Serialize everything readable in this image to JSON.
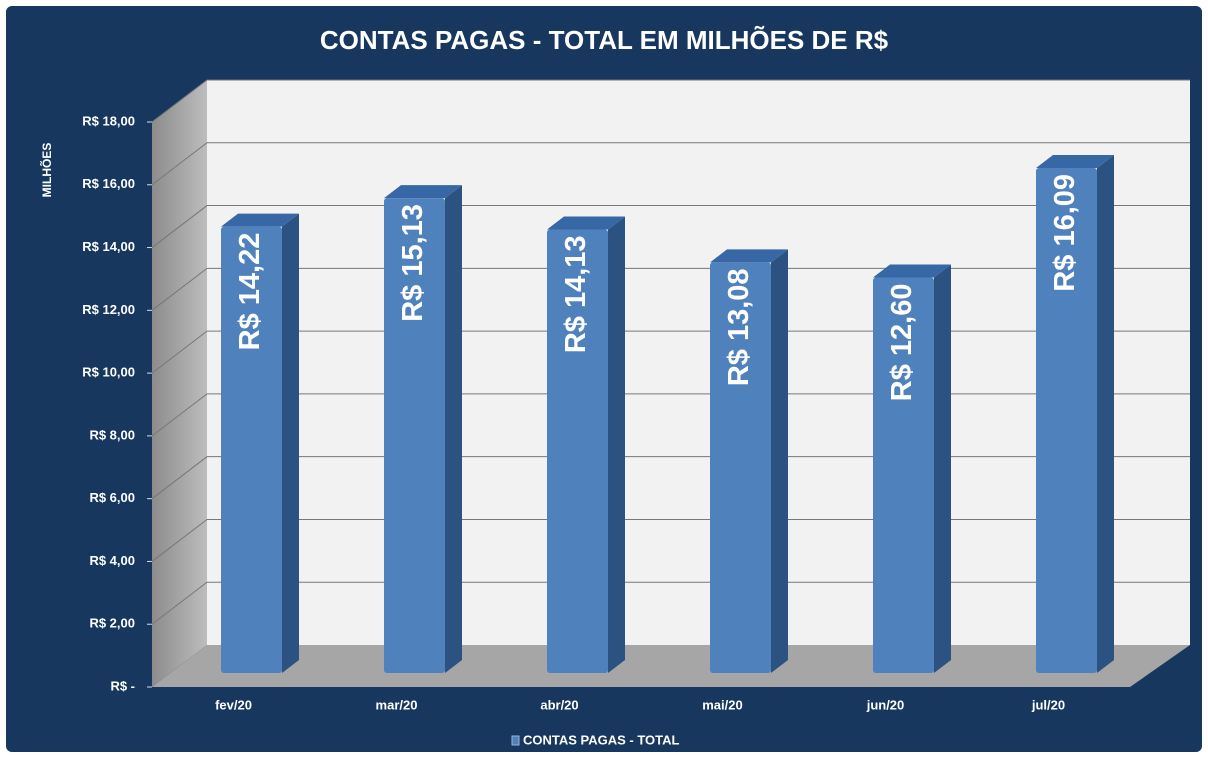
{
  "chart_data": {
    "type": "bar3d",
    "title": "CONTAS PAGAS - TOTAL EM MILHÕES DE R$",
    "y_label": "MILHÕES",
    "categories": [
      "fev/20",
      "mar/20",
      "abr/20",
      "mai/20",
      "jun/20",
      "jul/20"
    ],
    "series": [
      {
        "name": "CONTAS PAGAS - TOTAL",
        "color": "#4f81bd",
        "values": [
          14.22,
          15.13,
          14.13,
          13.08,
          12.6,
          16.09
        ],
        "value_labels": [
          "R$ 14,22",
          "R$ 15,13",
          "R$ 14,13",
          "R$ 13,08",
          "R$ 12,60",
          "R$ 16,09"
        ]
      }
    ],
    "ylim": [
      0,
      18
    ],
    "yticks": [
      {
        "value": 0,
        "label": "R$ -"
      },
      {
        "value": 2,
        "label": "R$ 2,00"
      },
      {
        "value": 4,
        "label": "R$ 4,00"
      },
      {
        "value": 6,
        "label": "R$ 6,00"
      },
      {
        "value": 8,
        "label": "R$ 8,00"
      },
      {
        "value": 10,
        "label": "R$ 10,00"
      },
      {
        "value": 12,
        "label": "R$ 12,00"
      },
      {
        "value": 14,
        "label": "R$ 14,00"
      },
      {
        "value": 16,
        "label": "R$ 16,00"
      },
      {
        "value": 18,
        "label": "R$ 18,00"
      }
    ],
    "grid": true,
    "legend": "bottom"
  }
}
